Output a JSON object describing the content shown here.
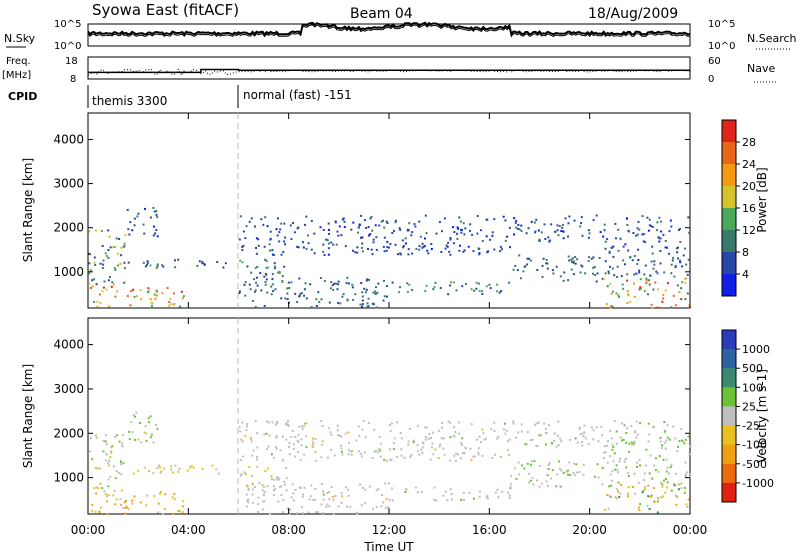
{
  "header": {
    "station": "Syowa East (fitACF)",
    "beam": "Beam 04",
    "date": "18/Aug/2009"
  },
  "top_panels": {
    "nsky_label": "N.Sky",
    "nsearch_label": "N.Search",
    "freq_label_1": "Freq.",
    "freq_label_2": "[MHz]",
    "nave_label": "Nave",
    "cpid_label": "CPID",
    "noise_ticks_left": [
      "10^5",
      "10^0"
    ],
    "noise_ticks_right": [
      "10^5",
      "10^0"
    ],
    "freq_ticks": [
      "18",
      "8"
    ],
    "nave_ticks": [
      "60",
      "0"
    ],
    "cpid_segments": [
      {
        "start_h": 0,
        "end_h": 6,
        "label": "themis 3300"
      },
      {
        "start_h": 6,
        "end_h": 24,
        "label": "normal (fast) -151"
      }
    ],
    "freq_steps": [
      {
        "start_h": 0,
        "end_h": 4.5,
        "mhz": 11
      },
      {
        "start_h": 4.5,
        "end_h": 6,
        "mhz": 12.3
      },
      {
        "start_h": 6,
        "end_h": 24,
        "mhz": 12
      }
    ]
  },
  "axes": {
    "ylabel": "Slant Range [km]",
    "xlabel": "Time UT",
    "y_ticks": [
      "1000",
      "2000",
      "3000",
      "4000"
    ],
    "x_ticks": [
      "00:00",
      "04:00",
      "08:00",
      "12:00",
      "16:00",
      "20:00",
      "00:00"
    ]
  },
  "chart_data": [
    {
      "type": "heatmap",
      "title": "",
      "colorbar_label": "Power [dB]",
      "colorbar_ticks": [
        "4",
        "8",
        "12",
        "16",
        "20",
        "24",
        "28"
      ],
      "colors": [
        "#0f1ee6",
        "#2548a8",
        "#3a7a6a",
        "#4aa85a",
        "#d6c22a",
        "#f49a10",
        "#e8651a",
        "#e02418"
      ],
      "xlim": [
        0,
        24
      ],
      "ylim": [
        180,
        4600
      ],
      "x_unit": "hours UT",
      "y_unit": "km",
      "regions": [
        {
          "t": [
            0.0,
            3.8
          ],
          "r": [
            200,
            700
          ],
          "v": [
            12,
            30
          ]
        },
        {
          "t": [
            0.0,
            1.5
          ],
          "r": [
            700,
            2000
          ],
          "v": [
            4,
            22
          ]
        },
        {
          "t": [
            1.0,
            3.0
          ],
          "r": [
            1100,
            1300
          ],
          "v": [
            4,
            16
          ]
        },
        {
          "t": [
            1.5,
            2.8
          ],
          "r": [
            1800,
            2500
          ],
          "v": [
            3,
            10
          ]
        },
        {
          "t": [
            2.2,
            5.5
          ],
          "r": [
            1100,
            1300
          ],
          "v": [
            4,
            10
          ]
        },
        {
          "t": [
            6.0,
            8.0
          ],
          "r": [
            700,
            1300
          ],
          "v": [
            4,
            14
          ]
        },
        {
          "t": [
            6.0,
            12.0
          ],
          "r": [
            1400,
            2300
          ],
          "v": [
            3,
            9
          ]
        },
        {
          "t": [
            6.0,
            12.0
          ],
          "r": [
            200,
            900
          ],
          "v": [
            4,
            12
          ]
        },
        {
          "t": [
            12.0,
            16.8
          ],
          "r": [
            500,
            800
          ],
          "v": [
            6,
            16
          ]
        },
        {
          "t": [
            12.0,
            16.8
          ],
          "r": [
            1400,
            2300
          ],
          "v": [
            3,
            9
          ]
        },
        {
          "t": [
            16.8,
            20.5
          ],
          "r": [
            800,
            1400
          ],
          "v": [
            4,
            12
          ]
        },
        {
          "t": [
            16.8,
            20.5
          ],
          "r": [
            1700,
            2300
          ],
          "v": [
            3,
            10
          ]
        },
        {
          "t": [
            20.5,
            24.0
          ],
          "r": [
            200,
            900
          ],
          "v": [
            8,
            30
          ]
        },
        {
          "t": [
            20.5,
            24.0
          ],
          "r": [
            900,
            2300
          ],
          "v": [
            3,
            12
          ]
        }
      ]
    },
    {
      "type": "heatmap",
      "title": "",
      "colorbar_label": "Velocity [m s-1]",
      "colorbar_ticks": [
        "1000",
        "500",
        "100",
        "25",
        "-25",
        "-100",
        "-500",
        "-1000"
      ],
      "colors": [
        "#2a3cb8",
        "#2e62a0",
        "#3a8a72",
        "#6cc234",
        "#bfbfbf",
        "#e8c020",
        "#f0a010",
        "#ee6a10",
        "#e02010"
      ],
      "xlim": [
        0,
        24
      ],
      "ylim": [
        180,
        4600
      ],
      "x_unit": "hours UT",
      "y_unit": "km",
      "regions": [
        {
          "t": [
            0.0,
            3.8
          ],
          "r": [
            200,
            700
          ],
          "v": [
            -600,
            -50
          ]
        },
        {
          "t": [
            0.0,
            1.5
          ],
          "r": [
            700,
            2000
          ],
          "v": [
            -300,
            300
          ]
        },
        {
          "t": [
            1.0,
            3.0
          ],
          "r": [
            1100,
            1300
          ],
          "v": [
            -400,
            100
          ]
        },
        {
          "t": [
            1.5,
            2.8
          ],
          "r": [
            1800,
            2500
          ],
          "v": [
            -200,
            400
          ]
        },
        {
          "t": [
            2.2,
            5.5
          ],
          "r": [
            1100,
            1300
          ],
          "v": [
            -400,
            0
          ]
        },
        {
          "t": [
            6.0,
            8.0
          ],
          "r": [
            700,
            1300
          ],
          "v": [
            -200,
            100
          ]
        },
        {
          "t": [
            6.0,
            12.0
          ],
          "r": [
            1400,
            2300
          ],
          "v": [
            -150,
            150
          ]
        },
        {
          "t": [
            6.0,
            12.0
          ],
          "r": [
            200,
            900
          ],
          "v": [
            -150,
            50
          ]
        },
        {
          "t": [
            12.0,
            16.8
          ],
          "r": [
            500,
            800
          ],
          "v": [
            0,
            150
          ]
        },
        {
          "t": [
            12.0,
            16.8
          ],
          "r": [
            1400,
            2300
          ],
          "v": [
            -150,
            150
          ]
        },
        {
          "t": [
            16.8,
            20.5
          ],
          "r": [
            800,
            1400
          ],
          "v": [
            20,
            200
          ]
        },
        {
          "t": [
            16.8,
            20.5
          ],
          "r": [
            1700,
            2300
          ],
          "v": [
            -50,
            150
          ]
        },
        {
          "t": [
            20.5,
            24.0
          ],
          "r": [
            200,
            900
          ],
          "v": [
            -800,
            600
          ]
        },
        {
          "t": [
            20.5,
            24.0
          ],
          "r": [
            900,
            2300
          ],
          "v": [
            -100,
            300
          ]
        }
      ]
    }
  ]
}
